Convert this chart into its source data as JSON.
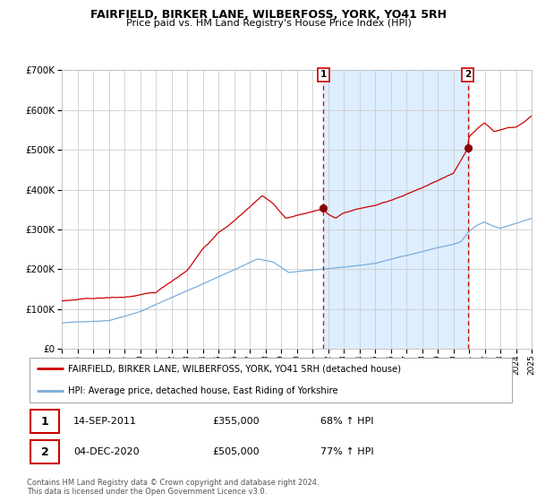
{
  "title": "FAIRFIELD, BIRKER LANE, WILBERFOSS, YORK, YO41 5RH",
  "subtitle": "Price paid vs. HM Land Registry's House Price Index (HPI)",
  "ylim": [
    0,
    700000
  ],
  "yticks": [
    0,
    100000,
    200000,
    300000,
    400000,
    500000,
    600000,
    700000
  ],
  "ytick_labels": [
    "£0",
    "£100K",
    "£200K",
    "£300K",
    "£400K",
    "£500K",
    "£600K",
    "£700K"
  ],
  "x_start_year": 1995,
  "x_end_year": 2025,
  "xtick_years": [
    1995,
    1996,
    1997,
    1998,
    1999,
    2000,
    2001,
    2002,
    2003,
    2004,
    2005,
    2006,
    2007,
    2008,
    2009,
    2010,
    2011,
    2012,
    2013,
    2014,
    2015,
    2016,
    2017,
    2018,
    2019,
    2020,
    2021,
    2022,
    2023,
    2024,
    2025
  ],
  "sale1_date": 2011.71,
  "sale1_price": 355000,
  "sale2_date": 2020.92,
  "sale2_price": 505000,
  "red_line_color": "#cc0000",
  "blue_line_color": "#7aaddb",
  "shade_color": "#ddeeff",
  "grid_color": "#cccccc",
  "plot_bg": "#ffffff",
  "legend_label_red": "FAIRFIELD, BIRKER LANE, WILBERFOSS, YORK, YO41 5RH (detached house)",
  "legend_label_blue": "HPI: Average price, detached house, East Riding of Yorkshire",
  "footer": "Contains HM Land Registry data © Crown copyright and database right 2024.\nThis data is licensed under the Open Government Licence v3.0.",
  "table_rows": [
    [
      "1",
      "14-SEP-2011",
      "£355,000",
      "68% ↑ HPI"
    ],
    [
      "2",
      "04-DEC-2020",
      "£505,000",
      "77% ↑ HPI"
    ]
  ]
}
